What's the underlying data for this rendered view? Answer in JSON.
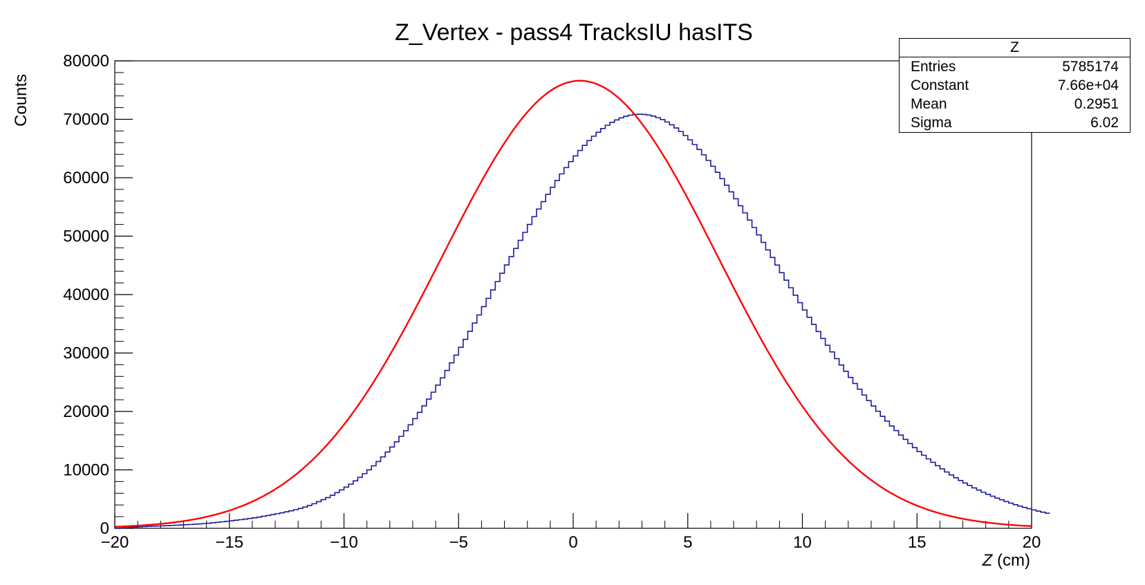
{
  "chart_data": {
    "type": "histogram",
    "title": "Z_Vertex - pass4 TracksIU hasITS",
    "xlabel_var": "Z",
    "xlabel_unit": " (cm)",
    "ylabel": "Counts",
    "xlim": [
      -20,
      20
    ],
    "ylim": [
      0,
      80000
    ],
    "x_ticks": [
      -20,
      -15,
      -10,
      -5,
      0,
      5,
      10,
      15,
      20
    ],
    "y_ticks": [
      0,
      10000,
      20000,
      30000,
      40000,
      50000,
      60000,
      70000,
      80000
    ],
    "grid": false,
    "histogram": {
      "bin_count": 200,
      "bin_width": 0.2,
      "color": "#1a1a9c",
      "counts": [
        0,
        50,
        100,
        150,
        200,
        250,
        300,
        330,
        360,
        390,
        420,
        450,
        490,
        530,
        570,
        610,
        650,
        700,
        750,
        800,
        870,
        950,
        1030,
        1110,
        1190,
        1280,
        1380,
        1480,
        1580,
        1680,
        1800,
        1920,
        2060,
        2200,
        2340,
        2500,
        2650,
        2820,
        3000,
        3180,
        3400,
        3630,
        3900,
        4200,
        4560,
        4900,
        5260,
        5660,
        6100,
        6570,
        7050,
        7560,
        8130,
        8720,
        9350,
        10010,
        10700,
        11430,
        12220,
        13050,
        13910,
        14800,
        15740,
        16710,
        17710,
        18760,
        19850,
        20960,
        22110,
        23300,
        24510,
        25750,
        27020,
        28320,
        29640,
        30980,
        32340,
        33720,
        35120,
        36520,
        37940,
        39360,
        40790,
        42220,
        43650,
        45070,
        46490,
        47890,
        49280,
        50650,
        52000,
        53330,
        54640,
        55910,
        57150,
        58350,
        59520,
        60650,
        61730,
        62760,
        63740,
        64670,
        65540,
        66350,
        67100,
        67790,
        68420,
        68980,
        69470,
        69890,
        70240,
        70510,
        70710,
        70830,
        70870,
        70840,
        70730,
        70540,
        70280,
        69950,
        69540,
        69060,
        68510,
        67900,
        67220,
        66480,
        65680,
        64830,
        63920,
        62960,
        61960,
        60920,
        59840,
        58720,
        57580,
        56400,
        55200,
        53980,
        52740,
        51480,
        50210,
        48930,
        47640,
        46350,
        45050,
        43750,
        42460,
        41170,
        39890,
        38620,
        37360,
        36120,
        34890,
        33680,
        32490,
        31320,
        30180,
        29050,
        27950,
        26870,
        25820,
        24790,
        23790,
        22810,
        21860,
        20940,
        20040,
        19170,
        18330,
        17510,
        16720,
        15950,
        15210,
        14500,
        13810,
        13140,
        12500,
        11880,
        11290,
        10720,
        10170,
        9640,
        9140,
        8650,
        8190,
        7750,
        7330,
        6920,
        6540,
        6170,
        5820,
        5490,
        5170,
        4870,
        4580,
        4310,
        4050,
        3800,
        3570,
        3350,
        3140,
        2940,
        2760,
        2580
      ]
    },
    "fit": {
      "function": "gaus",
      "color": "#ff0000",
      "constant": 76600,
      "mean": 0.2951,
      "sigma": 6.02
    }
  },
  "stats_box": {
    "title": "Z",
    "rows": [
      {
        "label": "Entries",
        "value": "5785174"
      },
      {
        "label": "Constant",
        "value": "7.66e+04"
      },
      {
        "label": "Mean",
        "value": "0.2951"
      },
      {
        "label": "Sigma",
        "value": "6.02"
      }
    ]
  }
}
